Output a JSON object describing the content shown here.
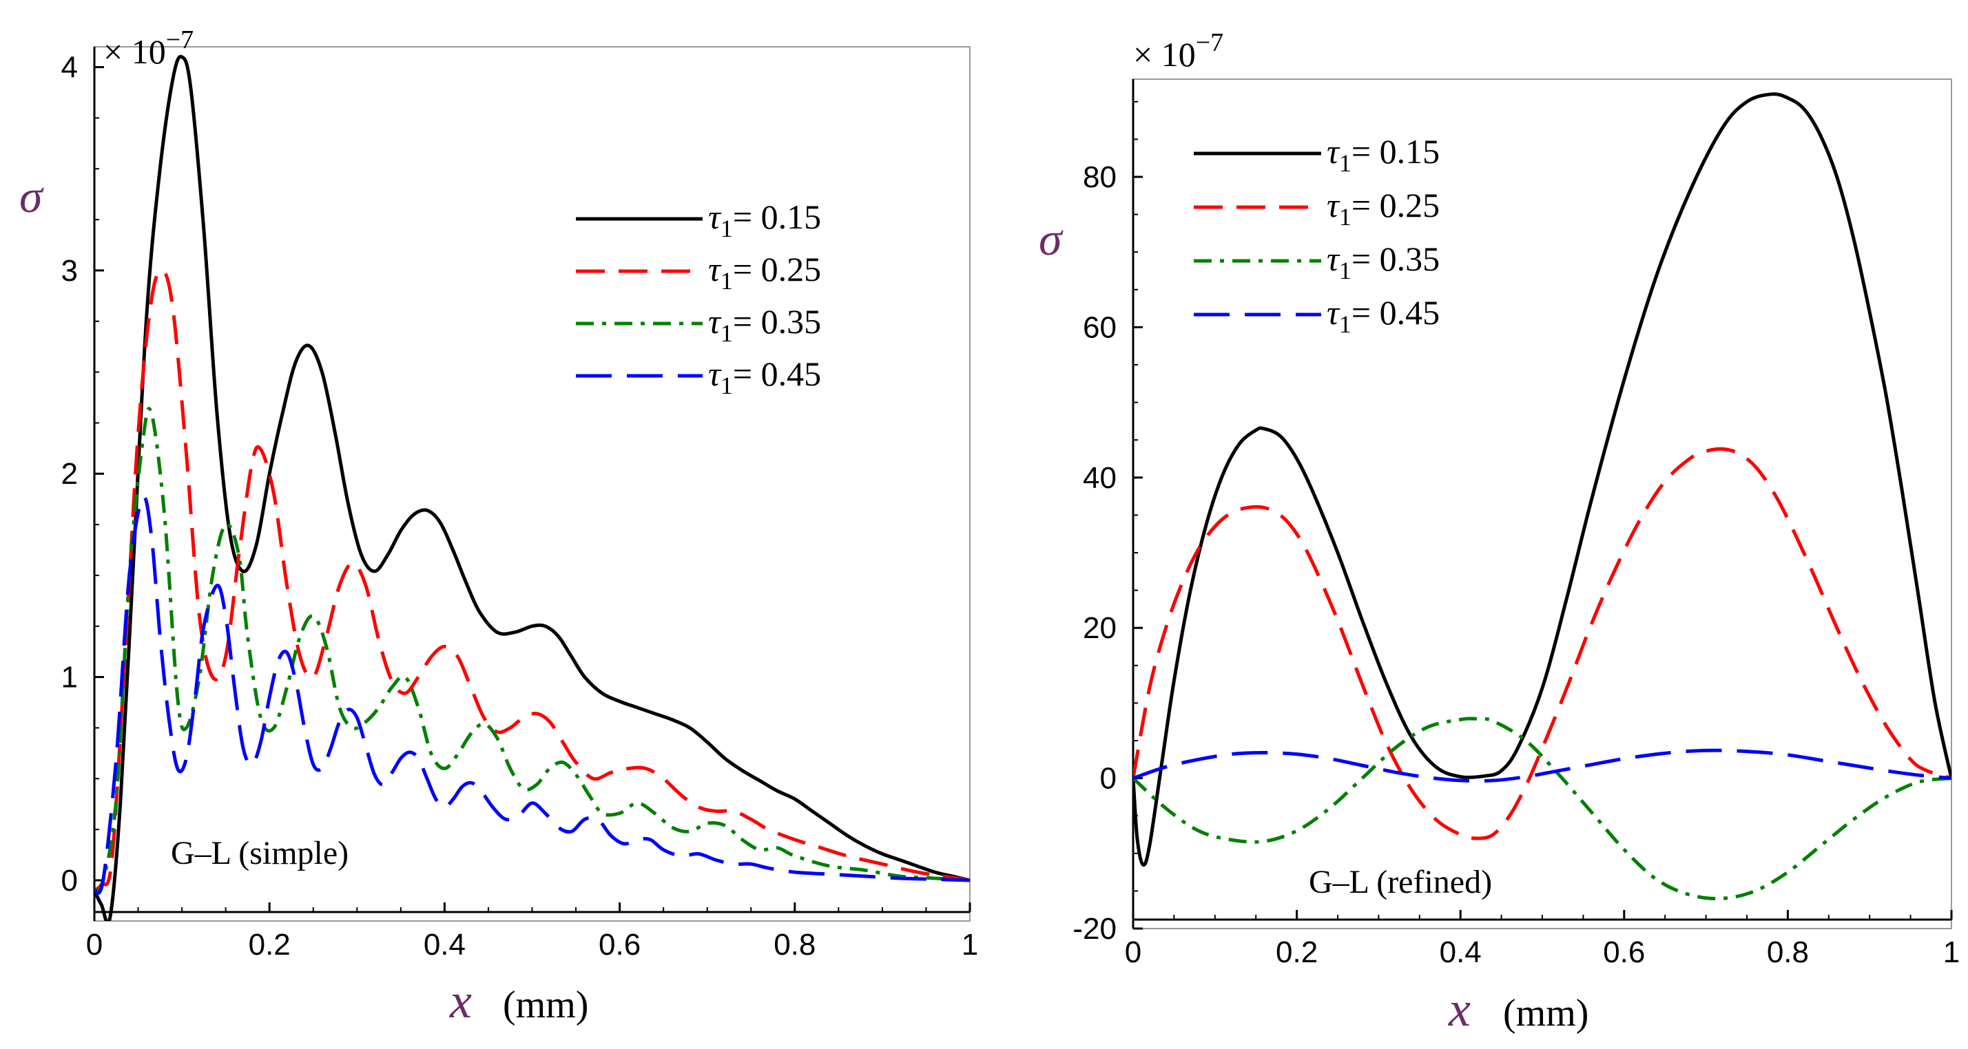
{
  "chart_data": [
    {
      "type": "line",
      "title": "",
      "xlabel_symbol": "x",
      "xlabel_unit": "(mm)",
      "ylabel": "σ",
      "scale_label": "× 10",
      "scale_exponent": "−7",
      "annotation": "G–L (simple)",
      "xlim": [
        0,
        1
      ],
      "ylim": [
        -0.2,
        4.1
      ],
      "xticks": [
        0,
        0.2,
        0.4,
        0.6,
        0.8,
        1
      ],
      "xtick_labels": [
        "0",
        "0.2",
        "0.4",
        "0.6",
        "0.8",
        "1"
      ],
      "yticks": [
        0,
        1,
        2,
        3,
        4
      ],
      "ytick_labels": [
        "0",
        "1",
        "2",
        "3",
        "4"
      ],
      "legend_position": "top-right",
      "series": [
        {
          "name": "τ1= 0.15",
          "legend_symbol": "τ",
          "legend_sub": "1",
          "legend_value": "= 0.15",
          "color": "#000000",
          "dash": "none",
          "x": [
            0,
            0.008,
            0.018,
            0.03,
            0.045,
            0.06,
            0.075,
            0.09,
            0.1,
            0.11,
            0.125,
            0.14,
            0.155,
            0.17,
            0.185,
            0.2,
            0.215,
            0.23,
            0.245,
            0.26,
            0.275,
            0.29,
            0.305,
            0.32,
            0.335,
            0.35,
            0.365,
            0.38,
            0.395,
            0.41,
            0.425,
            0.44,
            0.46,
            0.48,
            0.5,
            0.515,
            0.53,
            0.545,
            0.56,
            0.58,
            0.6,
            0.62,
            0.64,
            0.66,
            0.68,
            0.7,
            0.72,
            0.74,
            0.76,
            0.78,
            0.8,
            0.82,
            0.84,
            0.86,
            0.88,
            0.9,
            0.92,
            0.94,
            0.96,
            0.98,
            1
          ],
          "y": [
            -0.05,
            -0.12,
            -0.18,
            0.4,
            1.6,
            2.8,
            3.5,
            3.95,
            4.05,
            3.9,
            3.2,
            2.3,
            1.7,
            1.52,
            1.65,
            2.0,
            2.3,
            2.55,
            2.63,
            2.5,
            2.2,
            1.85,
            1.6,
            1.52,
            1.6,
            1.72,
            1.8,
            1.82,
            1.76,
            1.62,
            1.46,
            1.32,
            1.22,
            1.22,
            1.25,
            1.25,
            1.2,
            1.1,
            1.0,
            0.92,
            0.88,
            0.85,
            0.82,
            0.79,
            0.75,
            0.68,
            0.6,
            0.54,
            0.49,
            0.44,
            0.4,
            0.34,
            0.28,
            0.22,
            0.17,
            0.13,
            0.1,
            0.07,
            0.04,
            0.02,
            0
          ]
        },
        {
          "name": "τ1= 0.25",
          "legend_symbol": "τ",
          "legend_sub": "1",
          "legend_value": "= 0.25",
          "color": "#ff0000",
          "dash": "42,20",
          "x": [
            0,
            0.008,
            0.02,
            0.035,
            0.05,
            0.065,
            0.078,
            0.09,
            0.105,
            0.12,
            0.135,
            0.15,
            0.165,
            0.18,
            0.19,
            0.205,
            0.22,
            0.235,
            0.25,
            0.265,
            0.28,
            0.295,
            0.31,
            0.325,
            0.34,
            0.355,
            0.37,
            0.385,
            0.4,
            0.415,
            0.43,
            0.445,
            0.46,
            0.475,
            0.49,
            0.505,
            0.52,
            0.535,
            0.55,
            0.57,
            0.59,
            0.61,
            0.63,
            0.65,
            0.67,
            0.69,
            0.71,
            0.73,
            0.75,
            0.77,
            0.8,
            0.83,
            0.86,
            0.9,
            0.94,
            0.97,
            1
          ],
          "y": [
            -0.05,
            -0.02,
            0.1,
            1.1,
            2.2,
            2.85,
            3.0,
            2.8,
            2.1,
            1.3,
            1.0,
            1.1,
            1.6,
            2.05,
            2.12,
            1.9,
            1.45,
            1.1,
            1.0,
            1.2,
            1.45,
            1.56,
            1.45,
            1.18,
            0.98,
            0.92,
            1.0,
            1.1,
            1.15,
            1.1,
            0.95,
            0.8,
            0.73,
            0.75,
            0.8,
            0.82,
            0.78,
            0.68,
            0.58,
            0.5,
            0.53,
            0.55,
            0.55,
            0.5,
            0.42,
            0.36,
            0.34,
            0.34,
            0.3,
            0.25,
            0.2,
            0.16,
            0.12,
            0.08,
            0.04,
            0.02,
            0
          ]
        },
        {
          "name": "τ1= 0.35",
          "legend_symbol": "τ",
          "legend_sub": "1",
          "legend_value": "= 0.35",
          "color": "#008000",
          "dash": "26,12,6,12",
          "x": [
            0,
            0.01,
            0.025,
            0.04,
            0.055,
            0.065,
            0.08,
            0.095,
            0.105,
            0.12,
            0.135,
            0.15,
            0.165,
            0.175,
            0.19,
            0.205,
            0.22,
            0.235,
            0.25,
            0.265,
            0.28,
            0.295,
            0.31,
            0.325,
            0.34,
            0.355,
            0.37,
            0.385,
            0.4,
            0.415,
            0.43,
            0.445,
            0.46,
            0.475,
            0.49,
            0.505,
            0.52,
            0.535,
            0.55,
            0.565,
            0.58,
            0.6,
            0.62,
            0.64,
            0.66,
            0.68,
            0.7,
            0.72,
            0.74,
            0.76,
            0.78,
            0.8,
            0.84,
            0.88,
            0.92,
            0.96,
            1
          ],
          "y": [
            -0.05,
            0.0,
            0.4,
            1.5,
            2.15,
            2.3,
            1.8,
            0.9,
            0.75,
            1.0,
            1.5,
            1.75,
            1.6,
            1.2,
            0.8,
            0.75,
            0.95,
            1.2,
            1.3,
            1.15,
            0.85,
            0.75,
            0.78,
            0.85,
            0.95,
            1.0,
            0.85,
            0.62,
            0.55,
            0.62,
            0.72,
            0.77,
            0.7,
            0.55,
            0.45,
            0.47,
            0.55,
            0.58,
            0.52,
            0.42,
            0.33,
            0.33,
            0.38,
            0.33,
            0.26,
            0.24,
            0.28,
            0.27,
            0.2,
            0.15,
            0.16,
            0.12,
            0.07,
            0.05,
            0.02,
            0.01,
            0
          ]
        },
        {
          "name": "τ1= 0.45",
          "legend_symbol": "τ",
          "legend_sub": "1",
          "legend_value": "= 0.45",
          "color": "#0000ff",
          "dash": "52,22",
          "x": [
            0,
            0.01,
            0.025,
            0.04,
            0.055,
            0.065,
            0.075,
            0.085,
            0.095,
            0.105,
            0.115,
            0.125,
            0.14,
            0.15,
            0.16,
            0.17,
            0.18,
            0.19,
            0.2,
            0.21,
            0.22,
            0.23,
            0.24,
            0.25,
            0.26,
            0.27,
            0.28,
            0.29,
            0.3,
            0.31,
            0.32,
            0.33,
            0.34,
            0.35,
            0.36,
            0.37,
            0.38,
            0.39,
            0.4,
            0.41,
            0.42,
            0.43,
            0.44,
            0.455,
            0.47,
            0.485,
            0.5,
            0.515,
            0.53,
            0.545,
            0.56,
            0.575,
            0.59,
            0.605,
            0.62,
            0.635,
            0.65,
            0.67,
            0.69,
            0.71,
            0.73,
            0.75,
            0.77,
            0.8,
            0.84,
            0.88,
            0.92,
            0.96,
            1
          ],
          "y": [
            -0.05,
            0.0,
            0.6,
            1.5,
            1.88,
            1.7,
            1.2,
            0.8,
            0.55,
            0.6,
            0.9,
            1.25,
            1.45,
            1.3,
            0.95,
            0.65,
            0.57,
            0.68,
            0.9,
            1.08,
            1.12,
            0.98,
            0.75,
            0.57,
            0.55,
            0.65,
            0.78,
            0.84,
            0.8,
            0.66,
            0.52,
            0.47,
            0.53,
            0.6,
            0.63,
            0.6,
            0.5,
            0.4,
            0.36,
            0.4,
            0.46,
            0.48,
            0.45,
            0.36,
            0.3,
            0.32,
            0.38,
            0.33,
            0.26,
            0.24,
            0.3,
            0.3,
            0.22,
            0.18,
            0.2,
            0.2,
            0.15,
            0.12,
            0.13,
            0.1,
            0.08,
            0.08,
            0.06,
            0.04,
            0.03,
            0.02,
            0.01,
            0.005,
            0
          ]
        }
      ]
    },
    {
      "type": "line",
      "title": "",
      "xlabel_symbol": "x",
      "xlabel_unit": "(mm)",
      "ylabel": "σ",
      "scale_label": "× 10",
      "scale_exponent": "−7",
      "annotation": "G–L (refined)",
      "xlim": [
        0,
        1
      ],
      "ylim": [
        -20,
        93
      ],
      "xticks": [
        0,
        0.2,
        0.4,
        0.6,
        0.8,
        1
      ],
      "xtick_labels": [
        "0",
        "0.2",
        "0.4",
        "0.6",
        "0.8",
        "1"
      ],
      "yticks": [
        -20,
        0,
        20,
        40,
        60,
        80
      ],
      "ytick_labels": [
        "-20",
        "0",
        "20",
        "40",
        "60",
        "80"
      ],
      "legend_position": "top-left",
      "series": [
        {
          "name": "τ1= 0.15",
          "legend_symbol": "τ",
          "legend_sub": "1",
          "legend_value": "= 0.15",
          "color": "#000000",
          "dash": "none",
          "x": [
            0,
            0.005,
            0.012,
            0.02,
            0.035,
            0.05,
            0.07,
            0.09,
            0.11,
            0.13,
            0.15,
            0.16,
            0.18,
            0.2,
            0.22,
            0.25,
            0.28,
            0.31,
            0.34,
            0.37,
            0.4,
            0.43,
            0.45,
            0.47,
            0.5,
            0.53,
            0.56,
            0.6,
            0.64,
            0.68,
            0.72,
            0.75,
            0.78,
            0.8,
            0.82,
            0.84,
            0.86,
            0.88,
            0.9,
            0.92,
            0.94,
            0.96,
            0.98,
            1
          ],
          "y": [
            0,
            -8,
            -11.5,
            -9,
            2,
            13,
            25,
            34,
            40.5,
            44.5,
            46.3,
            46.5,
            45.5,
            42.5,
            38,
            30,
            21,
            12.5,
            5.5,
            1.5,
            0.2,
            0.3,
            1,
            4,
            12,
            24,
            37,
            53,
            67,
            78,
            86.5,
            90,
            91,
            90.5,
            89,
            85.5,
            80,
            72,
            62,
            51,
            38,
            24,
            10,
            0
          ]
        },
        {
          "name": "τ1= 0.25",
          "legend_symbol": "τ",
          "legend_sub": "1",
          "legend_value": "= 0.25",
          "color": "#ff0000",
          "dash": "42,20",
          "x": [
            0,
            0.02,
            0.04,
            0.06,
            0.08,
            0.1,
            0.12,
            0.14,
            0.16,
            0.18,
            0.2,
            0.22,
            0.25,
            0.28,
            0.31,
            0.34,
            0.37,
            0.4,
            0.42,
            0.44,
            0.46,
            0.48,
            0.5,
            0.53,
            0.56,
            0.59,
            0.62,
            0.65,
            0.68,
            0.7,
            0.72,
            0.74,
            0.76,
            0.78,
            0.8,
            0.83,
            0.86,
            0.89,
            0.92,
            0.95,
            0.97,
            1
          ],
          "y": [
            0,
            12,
            20,
            26,
            30.5,
            33.5,
            35.3,
            36,
            36,
            35,
            32.5,
            28.5,
            21,
            12.5,
            4.5,
            -1.5,
            -5.5,
            -7.5,
            -8,
            -7.5,
            -5,
            -1,
            4,
            12,
            20.5,
            28,
            34.5,
            39.5,
            42.5,
            43.5,
            43.8,
            43.2,
            41.5,
            38.5,
            34.5,
            27.5,
            20,
            13,
            7,
            2.5,
            1,
            0
          ]
        },
        {
          "name": "τ1= 0.35",
          "legend_symbol": "τ",
          "legend_sub": "1",
          "legend_value": "= 0.35",
          "color": "#008000",
          "dash": "26,12,6,12",
          "x": [
            0,
            0.04,
            0.08,
            0.12,
            0.16,
            0.2,
            0.24,
            0.28,
            0.32,
            0.36,
            0.4,
            0.42,
            0.44,
            0.48,
            0.52,
            0.56,
            0.6,
            0.64,
            0.68,
            0.72,
            0.76,
            0.8,
            0.84,
            0.88,
            0.92,
            0.96,
            1
          ],
          "y": [
            0,
            -4,
            -7,
            -8.2,
            -8.4,
            -7,
            -4,
            0,
            4,
            6.8,
            7.8,
            7.9,
            7.6,
            5,
            0.5,
            -4.5,
            -9.5,
            -13.5,
            -15.5,
            -16,
            -15,
            -12.5,
            -9,
            -5.5,
            -2.5,
            -0.5,
            0
          ]
        },
        {
          "name": "τ1= 0.45",
          "legend_symbol": "τ",
          "legend_sub": "1",
          "legend_value": "= 0.45",
          "color": "#0000ff",
          "dash": "52,22",
          "x": [
            0,
            0.04,
            0.08,
            0.12,
            0.16,
            0.2,
            0.24,
            0.28,
            0.32,
            0.36,
            0.4,
            0.44,
            0.48,
            0.52,
            0.56,
            0.6,
            0.64,
            0.68,
            0.72,
            0.76,
            0.8,
            0.84,
            0.88,
            0.92,
            0.96,
            1
          ],
          "y": [
            0,
            1.5,
            2.5,
            3.2,
            3.4,
            3.2,
            2.6,
            1.7,
            0.8,
            0.1,
            -0.3,
            -0.3,
            0.2,
            1,
            1.8,
            2.6,
            3.2,
            3.6,
            3.7,
            3.5,
            3.1,
            2.4,
            1.7,
            1,
            0.4,
            0
          ]
        }
      ]
    }
  ]
}
